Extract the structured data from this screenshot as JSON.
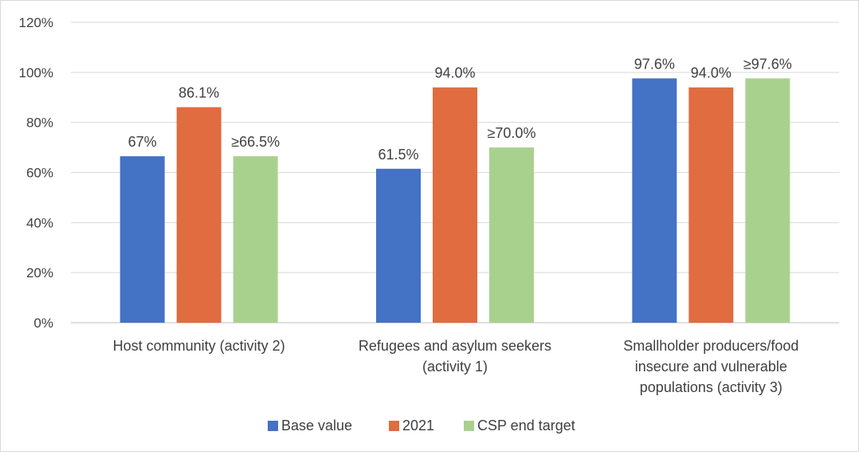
{
  "chart_data": {
    "type": "bar",
    "categories": [
      [
        "Host community (activity 2)"
      ],
      [
        "Refugees and asylum seekers",
        "(activity 1)"
      ],
      [
        "Smallholder producers/food",
        "insecure and vulnerable",
        "populations (activity 3)"
      ]
    ],
    "series": [
      {
        "name": "Base value",
        "color": "#4472c4",
        "values": [
          66.5,
          61.5,
          97.6
        ],
        "labels": [
          "67%",
          "61.5%",
          "97.6%"
        ]
      },
      {
        "name": "2021",
        "color": "#e06c40",
        "values": [
          86.1,
          94.0,
          94.0
        ],
        "labels": [
          "86.1%",
          "94.0%",
          "94.0%"
        ]
      },
      {
        "name": "CSP end target",
        "color": "#a9d18e",
        "values": [
          66.5,
          70.0,
          97.6
        ],
        "labels": [
          "≥66.5%",
          "≥70.0%",
          "≥97.6%"
        ]
      }
    ],
    "y_ticks": [
      "0%",
      "20%",
      "40%",
      "60%",
      "80%",
      "100%",
      "120%"
    ],
    "ylim": [
      0,
      120
    ],
    "grid": true,
    "legend_position": "bottom"
  }
}
